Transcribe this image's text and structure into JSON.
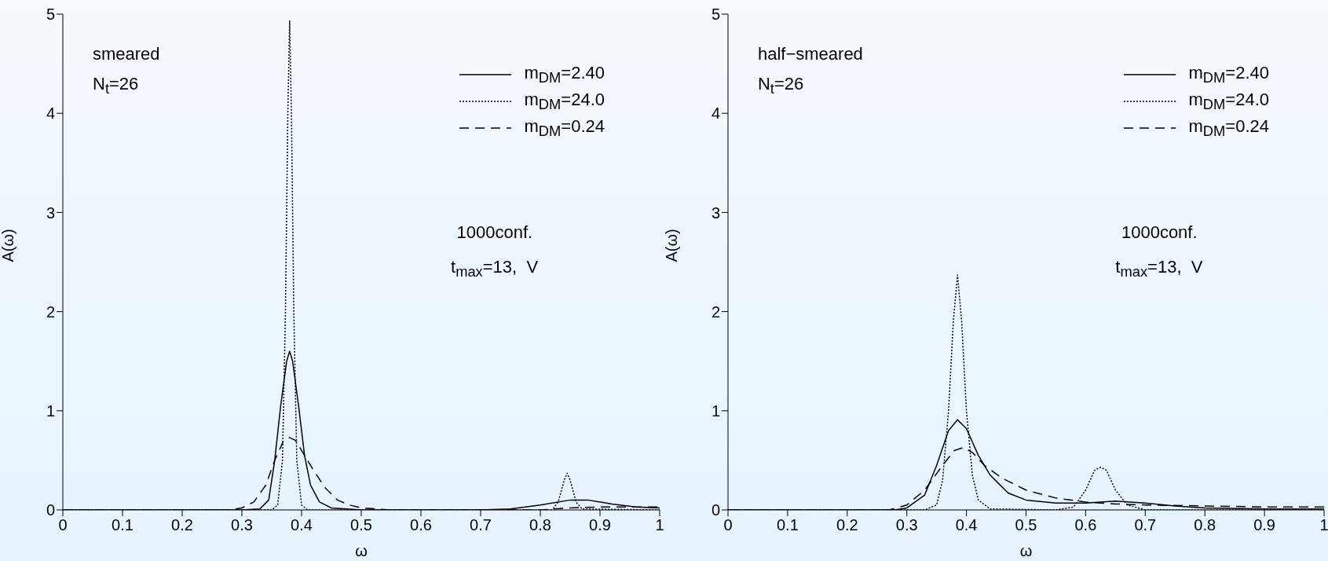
{
  "chart_data": [
    {
      "type": "line",
      "xlabel": "ω",
      "ylabel": "A(ω)",
      "xlim": [
        0,
        1
      ],
      "xticks": [
        0,
        0.1,
        0.2,
        0.3,
        0.4,
        0.5,
        0.6,
        0.7,
        0.8,
        0.9,
        1
      ],
      "ylim": [
        0,
        5
      ],
      "yticks": [
        0,
        1,
        2,
        3,
        4,
        5
      ],
      "legend": "top right",
      "annotations": [
        "smeared",
        "N$_{t}$=26",
        "1000conf.",
        "t$_{max}$=13,  V"
      ],
      "series": [
        {
          "name": "m$_{DM}$=2.40",
          "color": "#000000",
          "line_style": "solid",
          "x": [
            0,
            0.3,
            0.33,
            0.345,
            0.355,
            0.365,
            0.375,
            0.38,
            0.385,
            0.395,
            0.405,
            0.415,
            0.43,
            0.45,
            0.5,
            0.7,
            0.75,
            0.8,
            0.85,
            0.88,
            0.92,
            0.96,
            1
          ],
          "values": [
            0,
            0,
            0.01,
            0.1,
            0.5,
            1.05,
            1.5,
            1.6,
            1.5,
            1.05,
            0.55,
            0.25,
            0.08,
            0.02,
            0,
            0,
            0.01,
            0.05,
            0.1,
            0.1,
            0.06,
            0.03,
            0.02
          ]
        },
        {
          "name": "m$_{DM}$=24.0",
          "color": "#000000",
          "line_style": "dotted",
          "x": [
            0,
            0.35,
            0.36,
            0.368,
            0.373,
            0.377,
            0.38,
            0.383,
            0.387,
            0.392,
            0.4,
            0.41,
            0.82,
            0.83,
            0.84,
            0.845,
            0.85,
            0.86,
            0.87,
            1
          ],
          "values": [
            0,
            0,
            0.05,
            0.5,
            2,
            4,
            4.93,
            4,
            2,
            0.5,
            0.05,
            0,
            0,
            0.08,
            0.3,
            0.37,
            0.3,
            0.08,
            0.01,
            0
          ]
        },
        {
          "name": "m$_{DM}$=0.24",
          "color": "#000000",
          "line_style": "dashed",
          "x": [
            0,
            0.28,
            0.3,
            0.32,
            0.34,
            0.355,
            0.37,
            0.38,
            0.39,
            0.405,
            0.42,
            0.44,
            0.46,
            0.48,
            0.5,
            0.55,
            0.8,
            0.85,
            0.9,
            1
          ],
          "values": [
            0,
            0,
            0.02,
            0.08,
            0.25,
            0.5,
            0.7,
            0.73,
            0.7,
            0.55,
            0.4,
            0.22,
            0.1,
            0.05,
            0.02,
            0,
            0,
            0.02,
            0.03,
            0.03
          ]
        }
      ]
    },
    {
      "type": "line",
      "xlabel": "ω",
      "ylabel": "A(ω)",
      "xlim": [
        0,
        1
      ],
      "xticks": [
        0,
        0.1,
        0.2,
        0.3,
        0.4,
        0.5,
        0.6,
        0.7,
        0.8,
        0.9,
        1
      ],
      "ylim": [
        0,
        5
      ],
      "yticks": [
        0,
        1,
        2,
        3,
        4,
        5
      ],
      "legend": "top right",
      "annotations": [
        "half−smeared",
        "N$_{t}$=26",
        "1000conf.",
        "t$_{max}$=13,  V"
      ],
      "series": [
        {
          "name": "m$_{DM}$=2.40",
          "color": "#000000",
          "line_style": "solid",
          "x": [
            0,
            0.28,
            0.3,
            0.33,
            0.35,
            0.37,
            0.385,
            0.4,
            0.42,
            0.44,
            0.47,
            0.5,
            0.55,
            0.6,
            0.65,
            0.7,
            0.75,
            0.8,
            0.9,
            1
          ],
          "values": [
            0,
            0,
            0.02,
            0.15,
            0.45,
            0.8,
            0.91,
            0.82,
            0.55,
            0.35,
            0.17,
            0.1,
            0.07,
            0.07,
            0.09,
            0.07,
            0.04,
            0.02,
            0.01,
            0.01
          ]
        },
        {
          "name": "m$_{DM}$=24.0",
          "color": "#000000",
          "line_style": "dotted",
          "x": [
            0,
            0.33,
            0.35,
            0.36,
            0.37,
            0.378,
            0.385,
            0.392,
            0.4,
            0.41,
            0.42,
            0.44,
            0.55,
            0.58,
            0.6,
            0.615,
            0.625,
            0.635,
            0.65,
            0.67,
            0.7,
            1
          ],
          "values": [
            0,
            0,
            0.05,
            0.3,
            1,
            1.9,
            2.37,
            1.9,
            1,
            0.35,
            0.1,
            0.01,
            0,
            0.03,
            0.2,
            0.4,
            0.43,
            0.4,
            0.2,
            0.05,
            0,
            0
          ]
        },
        {
          "name": "m$_{DM}$=0.24",
          "color": "#000000",
          "line_style": "dashed",
          "x": [
            0,
            0.27,
            0.3,
            0.33,
            0.36,
            0.38,
            0.395,
            0.41,
            0.43,
            0.46,
            0.5,
            0.55,
            0.6,
            0.65,
            0.7,
            0.8,
            0.9,
            1
          ],
          "values": [
            0,
            0,
            0.05,
            0.2,
            0.45,
            0.6,
            0.63,
            0.58,
            0.45,
            0.32,
            0.2,
            0.12,
            0.08,
            0.06,
            0.05,
            0.04,
            0.03,
            0.03
          ]
        }
      ]
    }
  ]
}
